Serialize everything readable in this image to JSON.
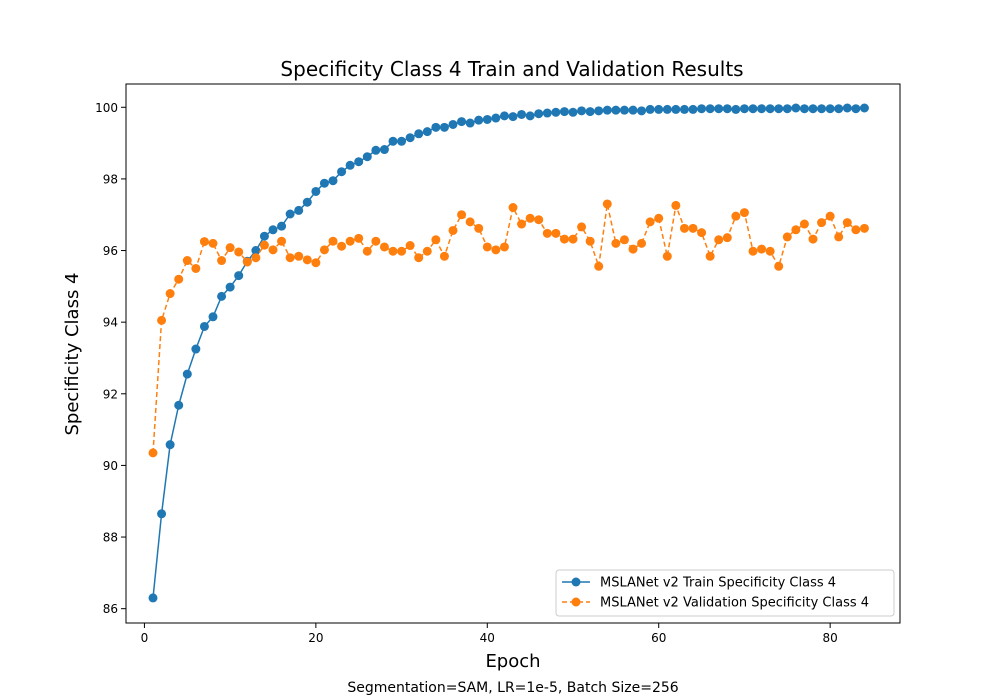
{
  "chart_data": {
    "type": "line",
    "title": "Specificity Class 4 Train and Validation Results",
    "xlabel": "Epoch",
    "ylabel": "Specificity Class 4",
    "caption": "Segmentation=SAM, LR=1e-5, Batch Size=256",
    "xlim": [
      -2.15,
      88.15
    ],
    "ylim": [
      85.6,
      100.65
    ],
    "xticks": [
      0,
      20,
      40,
      60,
      80
    ],
    "yticks": [
      86,
      88,
      90,
      92,
      94,
      96,
      98,
      100
    ],
    "grid": false,
    "legend_position": "bottom-right",
    "x": [
      1,
      2,
      3,
      4,
      5,
      6,
      7,
      8,
      9,
      10,
      11,
      12,
      13,
      14,
      15,
      16,
      17,
      18,
      19,
      20,
      21,
      22,
      23,
      24,
      25,
      26,
      27,
      28,
      29,
      30,
      31,
      32,
      33,
      34,
      35,
      36,
      37,
      38,
      39,
      40,
      41,
      42,
      43,
      44,
      45,
      46,
      47,
      48,
      49,
      50,
      51,
      52,
      53,
      54,
      55,
      56,
      57,
      58,
      59,
      60,
      61,
      62,
      63,
      64,
      65,
      66,
      67,
      68,
      69,
      70,
      71,
      72,
      73,
      74,
      75,
      76,
      77,
      78,
      79,
      80,
      81,
      82,
      83,
      84
    ],
    "series": [
      {
        "name": "MSLANet v2 Train Specificity Class 4",
        "color": "#1f77b4",
        "linestyle": "solid",
        "marker": "circle",
        "values": [
          86.3,
          88.65,
          90.58,
          91.68,
          92.55,
          93.25,
          93.88,
          94.15,
          94.72,
          94.98,
          95.3,
          95.7,
          96.0,
          96.4,
          96.58,
          96.68,
          97.02,
          97.12,
          97.35,
          97.65,
          97.88,
          97.95,
          98.2,
          98.38,
          98.48,
          98.62,
          98.8,
          98.82,
          99.05,
          99.05,
          99.15,
          99.26,
          99.32,
          99.44,
          99.44,
          99.52,
          99.6,
          99.56,
          99.64,
          99.66,
          99.7,
          99.76,
          99.74,
          99.8,
          99.76,
          99.82,
          99.84,
          99.86,
          99.88,
          99.86,
          99.9,
          99.88,
          99.9,
          99.92,
          99.92,
          99.92,
          99.92,
          99.9,
          99.94,
          99.94,
          99.94,
          99.94,
          99.94,
          99.94,
          99.96,
          99.96,
          99.96,
          99.96,
          99.94,
          99.96,
          99.96,
          99.96,
          99.96,
          99.96,
          99.96,
          99.98,
          99.96,
          99.96,
          99.96,
          99.96,
          99.96,
          99.98,
          99.96,
          99.98
        ]
      },
      {
        "name": "MSLANet v2 Validation Specificity Class 4",
        "color": "#ff7f0e",
        "linestyle": "dashed",
        "marker": "circle",
        "values": [
          90.35,
          94.05,
          94.8,
          95.2,
          95.72,
          95.5,
          96.25,
          96.2,
          95.72,
          96.08,
          95.96,
          95.68,
          95.8,
          96.15,
          96.02,
          96.26,
          95.8,
          95.84,
          95.74,
          95.66,
          96.02,
          96.26,
          96.12,
          96.26,
          96.34,
          95.98,
          96.26,
          96.1,
          95.98,
          95.98,
          96.14,
          95.8,
          95.98,
          96.3,
          95.84,
          96.56,
          97.0,
          96.8,
          96.62,
          96.1,
          96.02,
          96.1,
          97.2,
          96.74,
          96.9,
          96.86,
          96.48,
          96.48,
          96.32,
          96.32,
          96.66,
          96.26,
          95.56,
          97.3,
          96.2,
          96.3,
          96.04,
          96.2,
          96.8,
          96.9,
          95.84,
          97.26,
          96.62,
          96.62,
          96.5,
          95.84,
          96.3,
          96.36,
          96.96,
          97.06,
          95.98,
          96.04,
          95.98,
          95.56,
          96.38,
          96.58,
          96.74,
          96.32,
          96.78,
          96.96,
          96.38,
          96.78,
          96.58,
          96.62
        ]
      }
    ]
  }
}
